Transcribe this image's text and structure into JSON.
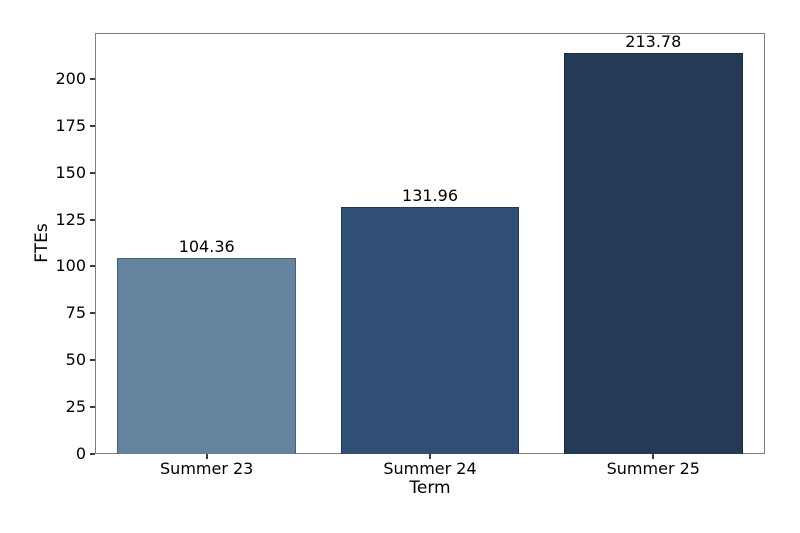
{
  "chart_data": {
    "type": "bar",
    "title": "",
    "xlabel": "Term",
    "ylabel": "FTEs",
    "categories": [
      "Summer 23",
      "Summer 24",
      "Summer 25"
    ],
    "values": [
      104.36,
      131.96,
      213.78
    ],
    "value_labels": [
      "104.36",
      "131.96",
      "213.78"
    ],
    "bar_colors": [
      "#64839f",
      "#2f5074",
      "#243a55"
    ],
    "bar_edge_color": "rgba(0,0,0,0.28)",
    "yticks": [
      0,
      25,
      50,
      75,
      100,
      125,
      150,
      175,
      200
    ],
    "ylim": [
      0,
      224.47
    ],
    "grid": false,
    "legend": null,
    "background_color": "#ffffff",
    "spine_color": "#7d7d7d",
    "text_color": "#000000"
  }
}
